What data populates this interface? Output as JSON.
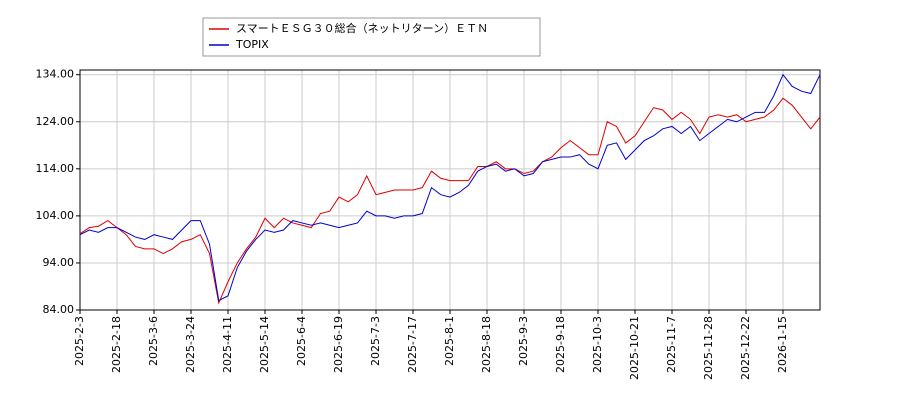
{
  "chart_data": {
    "type": "line",
    "categories": [
      "2025-2-3",
      null,
      null,
      null,
      "2025-2-18",
      null,
      null,
      null,
      "2025-3-6",
      null,
      null,
      null,
      "2025-3-24",
      null,
      null,
      null,
      "2025-4-11",
      null,
      null,
      null,
      "2025-5-14",
      null,
      null,
      null,
      "2025-6-4",
      null,
      null,
      null,
      "2025-6-19",
      null,
      null,
      null,
      "2025-7-3",
      null,
      null,
      null,
      "2025-7-17",
      null,
      null,
      null,
      "2025-8-1",
      null,
      null,
      null,
      "2025-8-18",
      null,
      null,
      null,
      "2025-9-3",
      null,
      null,
      null,
      "2025-9-18",
      null,
      null,
      null,
      "2025-10-3",
      null,
      null,
      null,
      "2025-10-21",
      null,
      null,
      null,
      "2025-11-7",
      null,
      null,
      null,
      "2025-11-28",
      null,
      null,
      null,
      "2025-12-22",
      null,
      null,
      null,
      "2026-1-15",
      null,
      null,
      null,
      null
    ],
    "series": [
      {
        "name": "スマートＥＳＧ３０総合（ネットリターン）ＥＴＮ",
        "color": "#dd0000",
        "values": [
          100.2,
          101.5,
          101.8,
          103,
          101.5,
          100,
          97.5,
          97,
          97,
          96,
          97,
          98.5,
          99,
          100,
          96,
          85.5,
          90,
          94,
          97,
          99.5,
          103.5,
          101.5,
          103.5,
          102.5,
          102,
          101.5,
          104.5,
          105,
          108,
          107,
          108.5,
          112.5,
          108.5,
          109,
          109.5,
          109.5,
          109.5,
          110,
          113.5,
          112,
          111.5,
          111.5,
          111.5,
          114.5,
          114.5,
          115.5,
          114,
          114,
          113,
          113.5,
          115.5,
          116.5,
          118.5,
          120,
          118.5,
          117,
          117,
          124,
          123,
          119.5,
          121,
          124,
          127,
          126.5,
          124.5,
          126,
          124.5,
          121.5,
          125,
          125.5,
          125,
          125.5,
          124,
          124.5,
          125,
          126.5,
          129,
          127.5,
          125,
          122.5,
          125
        ]
      },
      {
        "name": "TOPIX",
        "color": "#0000cc",
        "values": [
          100,
          101,
          100.5,
          101.5,
          101.5,
          100.5,
          99.5,
          99,
          100,
          99.5,
          99,
          101,
          103,
          103,
          98,
          86,
          87,
          93,
          96.5,
          99,
          101,
          100.5,
          101,
          103,
          102.5,
          102,
          102.5,
          102,
          101.5,
          102,
          102.5,
          105,
          104,
          104,
          103.5,
          104,
          104,
          104.5,
          110,
          108.5,
          108,
          109,
          110.5,
          113.5,
          114.5,
          115,
          113.5,
          114,
          112.5,
          113,
          115.5,
          116,
          116.5,
          116.5,
          117,
          115,
          114,
          119,
          119.5,
          116,
          118,
          120,
          121,
          122.5,
          123,
          121.5,
          123,
          120,
          121.5,
          123,
          124.5,
          124,
          125,
          126,
          126,
          129.5,
          134,
          131.5,
          130.5,
          130,
          134
        ]
      }
    ],
    "ylim": [
      84,
      135
    ],
    "yticks": [
      {
        "value": 84,
        "label": "84.00"
      },
      {
        "value": 94,
        "label": "94.00"
      },
      {
        "value": 104,
        "label": "104.00"
      },
      {
        "value": 114,
        "label": "114.00"
      },
      {
        "value": 124,
        "label": "124.00"
      },
      {
        "value": 134,
        "label": "134.00"
      }
    ],
    "grid": true
  }
}
